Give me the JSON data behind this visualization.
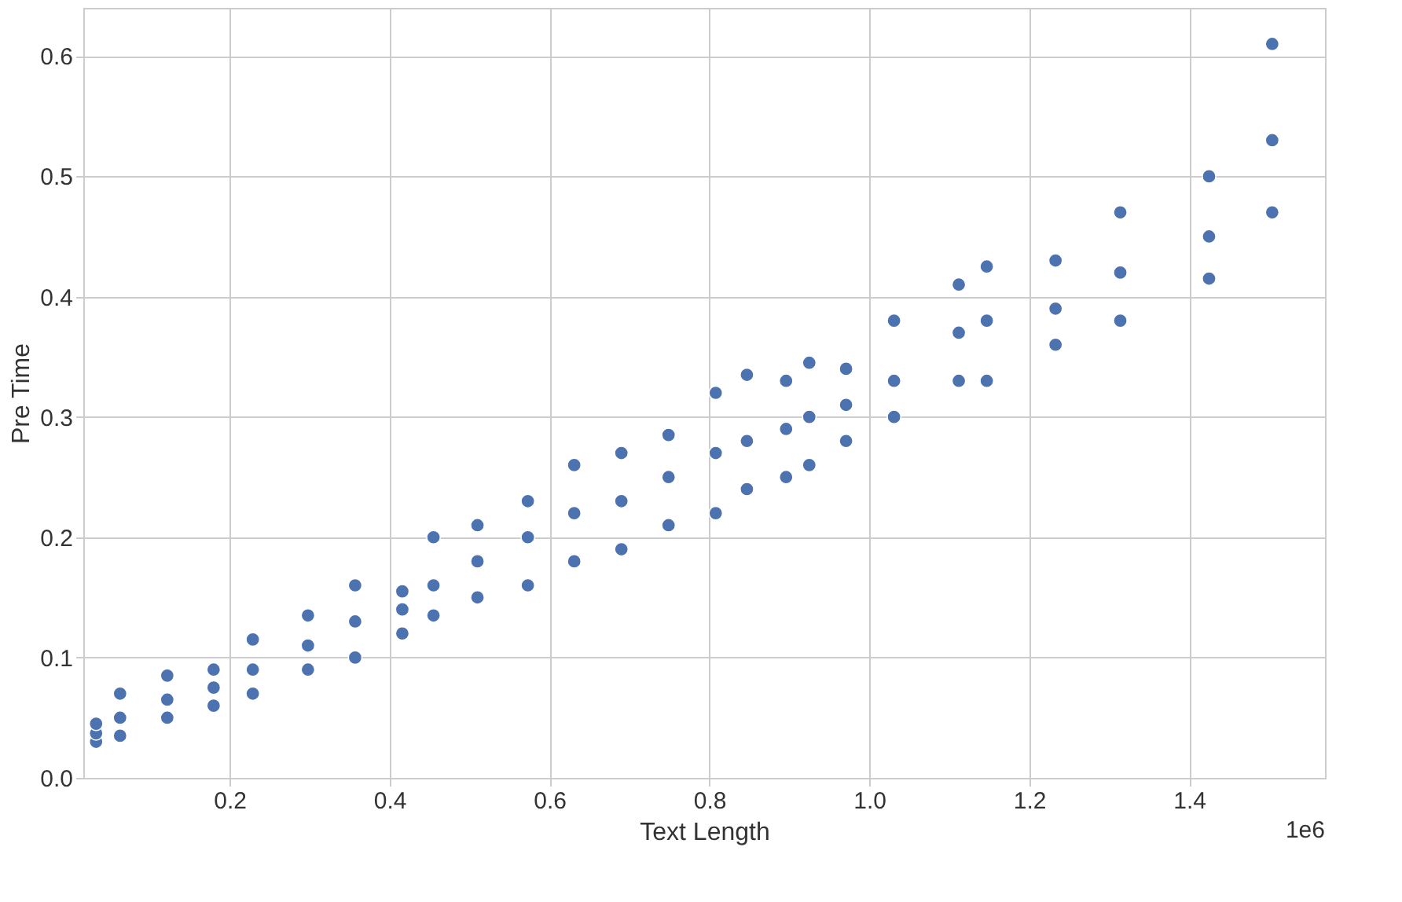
{
  "chart_data": {
    "type": "scatter",
    "xlabel": "Text Length",
    "ylabel": "Pre Time",
    "x": [
      0.033,
      0.033,
      0.033,
      0.063,
      0.063,
      0.063,
      0.122,
      0.122,
      0.122,
      0.18,
      0.18,
      0.18,
      0.229,
      0.229,
      0.229,
      0.298,
      0.298,
      0.298,
      0.357,
      0.357,
      0.357,
      0.416,
      0.416,
      0.416,
      0.455,
      0.455,
      0.455,
      0.51,
      0.51,
      0.51,
      0.573,
      0.573,
      0.573,
      0.631,
      0.631,
      0.631,
      0.69,
      0.69,
      0.69,
      0.749,
      0.749,
      0.749,
      0.808,
      0.808,
      0.808,
      0.847,
      0.847,
      0.847,
      0.896,
      0.896,
      0.896,
      0.925,
      0.925,
      0.925,
      0.971,
      0.971,
      0.971,
      1.031,
      1.031,
      1.031,
      1.112,
      1.112,
      1.112,
      1.147,
      1.147,
      1.147,
      1.233,
      1.233,
      1.233,
      1.314,
      1.314,
      1.314,
      1.425,
      1.425,
      1.425,
      1.504,
      1.504,
      1.504
    ],
    "series": [
      {
        "color": "#4c72b0",
        "values": [
          0.03,
          0.037,
          0.045,
          0.035,
          0.05,
          0.07,
          0.05,
          0.065,
          0.085,
          0.06,
          0.075,
          0.09,
          0.07,
          0.09,
          0.115,
          0.09,
          0.11,
          0.135,
          0.1,
          0.13,
          0.16,
          0.12,
          0.14,
          0.155,
          0.135,
          0.16,
          0.2,
          0.15,
          0.18,
          0.21,
          0.16,
          0.2,
          0.23,
          0.18,
          0.22,
          0.26,
          0.19,
          0.23,
          0.27,
          0.21,
          0.25,
          0.285,
          0.22,
          0.27,
          0.32,
          0.24,
          0.28,
          0.335,
          0.25,
          0.29,
          0.33,
          0.26,
          0.3,
          0.345,
          0.28,
          0.31,
          0.34,
          0.3,
          0.33,
          0.38,
          0.33,
          0.37,
          0.41,
          0.33,
          0.38,
          0.425,
          0.36,
          0.39,
          0.43,
          0.38,
          0.42,
          0.47,
          0.415,
          0.45,
          0.5,
          0.47,
          0.53,
          0.61
        ]
      }
    ],
    "xlim": [
      0.017,
      1.57
    ],
    "ylim": [
      0,
      0.64
    ],
    "xticks": [
      {
        "value": 0.2,
        "label": "0.2"
      },
      {
        "value": 0.4,
        "label": "0.4"
      },
      {
        "value": 0.6,
        "label": "0.6"
      },
      {
        "value": 0.8,
        "label": "0.8"
      },
      {
        "value": 1.0,
        "label": "1.0"
      },
      {
        "value": 1.2,
        "label": "1.2"
      },
      {
        "value": 1.4,
        "label": "1.4"
      }
    ],
    "yticks": [
      {
        "value": 0,
        "label": "0.0"
      },
      0.1,
      0.2,
      0.3,
      0.4,
      0.5,
      0.6
    ],
    "annotations": [
      "1e6"
    ],
    "grid": true,
    "marker": "circle"
  }
}
